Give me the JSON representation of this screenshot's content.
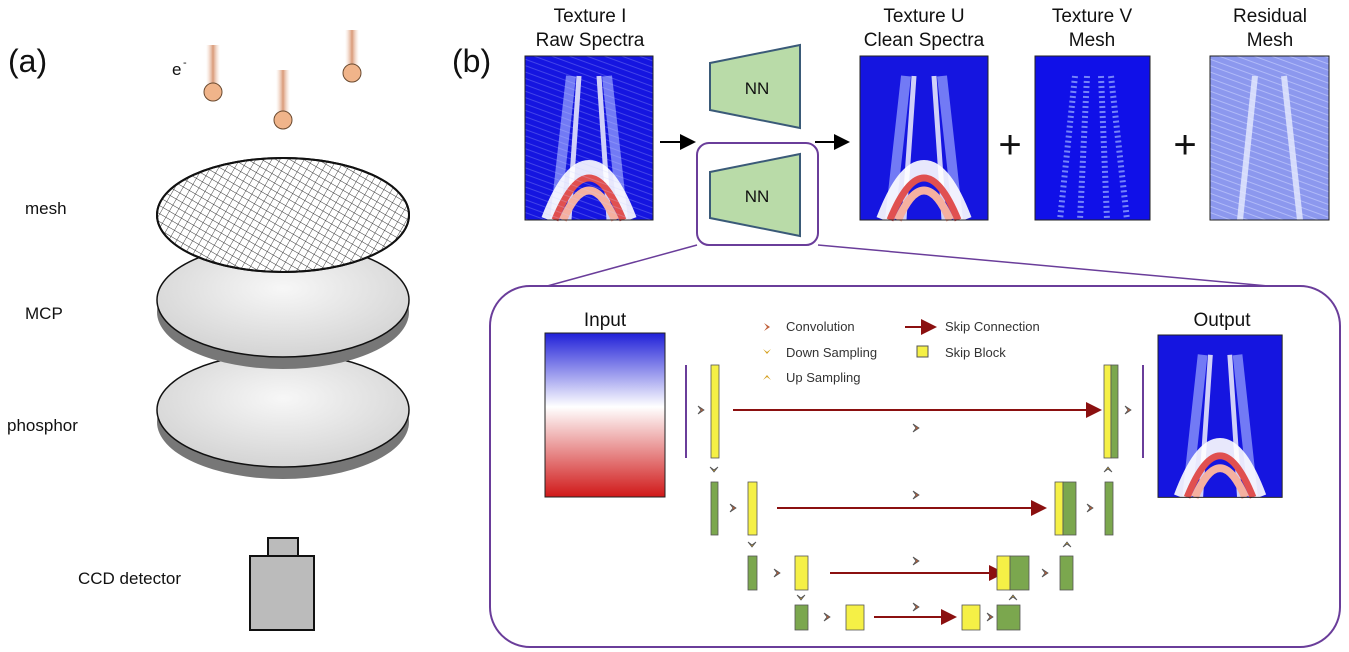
{
  "panel_a": {
    "label": "(a)",
    "electron": {
      "symbol": "e",
      "charge": "-"
    },
    "layers": [
      "mesh",
      "MCP",
      "phosphor"
    ],
    "detector": "CCD detector"
  },
  "panel_b": {
    "label": "(b)",
    "images": [
      {
        "title": "Texture I",
        "subtitle": "Raw Spectra"
      },
      {
        "title": "Texture U",
        "subtitle": "Clean Spectra"
      },
      {
        "title": "Texture V",
        "subtitle": "Mesh"
      },
      {
        "title": "Residual",
        "subtitle": "Mesh"
      }
    ],
    "networks": [
      "NN",
      "NN"
    ],
    "operators": [
      "+",
      "+"
    ],
    "unet": {
      "input": "Input",
      "output": "Output",
      "legend": [
        "Convolution",
        "Down Sampling",
        "Up Sampling",
        "Skip Connection",
        "Skip Block"
      ]
    }
  }
}
